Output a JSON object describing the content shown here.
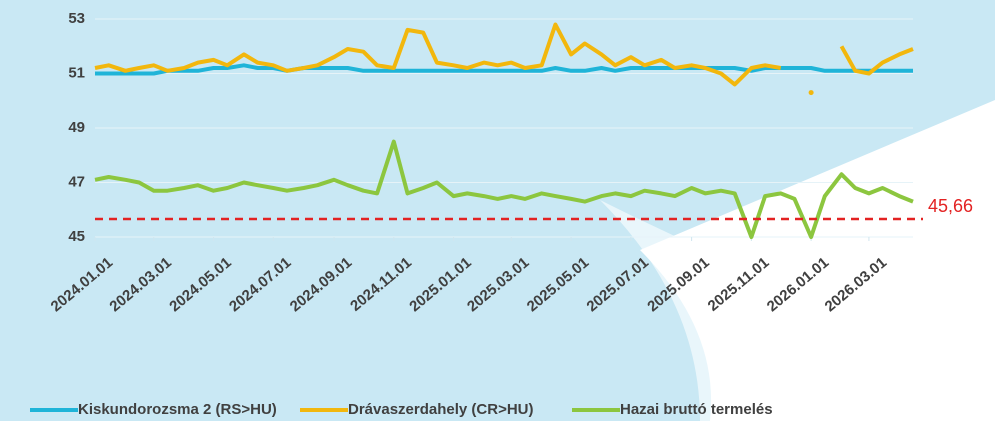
{
  "chart_data": {
    "type": "line",
    "x": [
      "2024.01.01",
      "2024.01.15",
      "2024.02.01",
      "2024.02.15",
      "2024.03.01",
      "2024.03.15",
      "2024.04.01",
      "2024.04.15",
      "2024.05.01",
      "2024.05.15",
      "2024.06.01",
      "2024.06.15",
      "2024.07.01",
      "2024.07.15",
      "2024.08.01",
      "2024.08.15",
      "2024.09.01",
      "2024.09.15",
      "2024.10.01",
      "2024.10.15",
      "2024.11.01",
      "2024.11.15",
      "2024.12.01",
      "2024.12.15",
      "2025.01.01",
      "2025.01.15",
      "2025.02.01",
      "2025.02.15",
      "2025.03.01",
      "2025.03.15",
      "2025.04.01",
      "2025.04.15",
      "2025.05.01",
      "2025.05.15",
      "2025.06.01",
      "2025.06.15",
      "2025.07.01",
      "2025.07.15",
      "2025.08.01",
      "2025.08.15",
      "2025.09.01",
      "2025.09.15",
      "2025.10.01",
      "2025.10.15",
      "2025.11.01",
      "2025.11.15",
      "2025.12.01",
      "2025.12.15",
      "2026.01.01",
      "2026.01.15",
      "2026.02.01",
      "2026.02.15",
      "2026.03.01",
      "2026.03.15",
      "2026.04.01",
      "2026.04.15"
    ],
    "series": [
      {
        "name": "Kiskundorozsma 2 (RS>HU)",
        "color": "#1fb4d8",
        "values": [
          51.0,
          51.0,
          51.0,
          51.0,
          51.0,
          51.1,
          51.1,
          51.1,
          51.2,
          51.2,
          51.3,
          51.2,
          51.2,
          51.1,
          51.2,
          51.2,
          51.2,
          51.2,
          51.1,
          51.1,
          51.1,
          51.1,
          51.1,
          51.1,
          51.1,
          51.1,
          51.1,
          51.1,
          51.1,
          51.1,
          51.1,
          51.2,
          51.1,
          51.1,
          51.2,
          51.1,
          51.2,
          51.2,
          51.2,
          51.2,
          51.2,
          51.2,
          51.2,
          51.2,
          51.1,
          51.2,
          51.2,
          51.2,
          51.2,
          51.1,
          51.1,
          51.1,
          51.1,
          51.1,
          51.1,
          51.1
        ]
      },
      {
        "name": "Drávaszerdahely (CR>HU)",
        "color": "#f2b70d",
        "values": [
          51.2,
          51.3,
          51.1,
          51.2,
          51.3,
          51.1,
          51.2,
          51.4,
          51.5,
          51.3,
          51.7,
          51.4,
          51.3,
          51.1,
          51.2,
          51.3,
          51.6,
          51.9,
          51.8,
          51.3,
          51.2,
          52.6,
          52.5,
          51.4,
          51.3,
          51.2,
          51.4,
          51.3,
          51.4,
          51.2,
          51.3,
          52.8,
          51.7,
          52.1,
          51.7,
          51.3,
          51.6,
          51.3,
          51.5,
          51.2,
          51.3,
          51.2,
          51.0,
          50.6,
          51.2,
          51.3,
          51.2,
          null,
          50.3,
          null,
          52.0,
          51.1,
          51.0,
          51.4,
          51.7,
          51.9
        ]
      },
      {
        "name": "Hazai bruttó termelés",
        "color": "#8cc63f",
        "values": [
          47.1,
          47.2,
          47.1,
          47.0,
          46.7,
          46.7,
          46.8,
          46.9,
          46.7,
          46.8,
          47.0,
          46.9,
          46.8,
          46.7,
          46.8,
          46.9,
          47.1,
          46.9,
          46.7,
          46.6,
          48.5,
          46.6,
          46.8,
          47.0,
          46.5,
          46.6,
          46.5,
          46.4,
          46.5,
          46.4,
          46.6,
          46.5,
          46.4,
          46.3,
          46.5,
          46.6,
          46.5,
          46.7,
          46.6,
          46.5,
          46.8,
          46.6,
          46.7,
          46.6,
          45.0,
          46.5,
          46.6,
          46.4,
          45.0,
          46.5,
          47.3,
          46.8,
          46.6,
          46.8,
          46.5,
          46.3
        ]
      }
    ],
    "xlim": [
      "2024.01.01",
      "2026.04.15"
    ],
    "xticks": [
      "2024.01.01",
      "2024.03.01",
      "2024.05.01",
      "2024.07.01",
      "2024.09.01",
      "2024.11.01",
      "2025.01.01",
      "2025.03.01",
      "2025.05.01",
      "2025.07.01",
      "2025.09.01",
      "2025.11.01",
      "2026.01.01",
      "2026.03.01"
    ],
    "ylim": [
      45,
      53
    ],
    "yticks": [
      45,
      47,
      49,
      51,
      53
    ],
    "grid": true,
    "reference_line": {
      "value": 45.66,
      "label": "45,66",
      "color": "#e32222"
    },
    "legend": "bottom"
  }
}
